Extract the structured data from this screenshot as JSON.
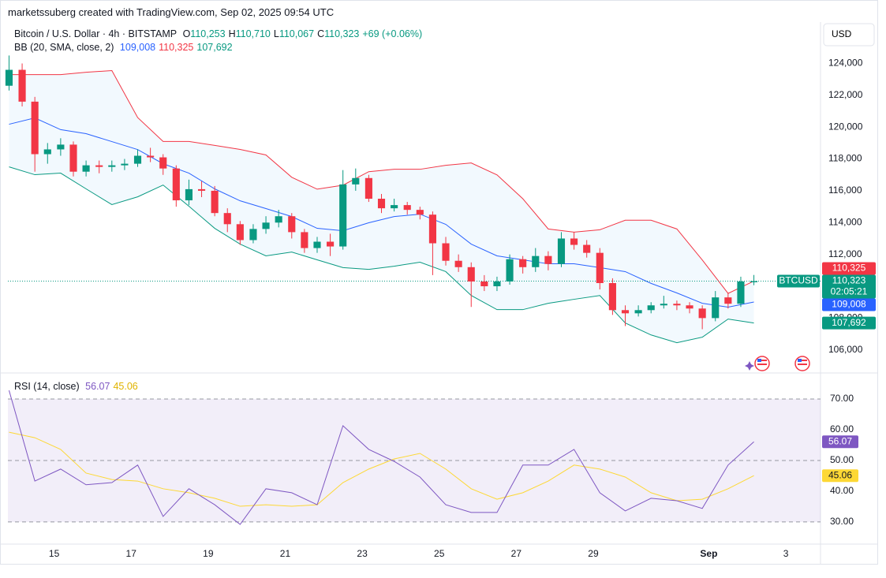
{
  "header": "marketssuberg created with TradingView.com, Sep 02, 2025 09:54 UTC",
  "chart_data": [
    {
      "type": "candlestick",
      "currency": "USD",
      "legend": {
        "symbol": "Bitcoin / U.S. Dollar · 4h · BITSTAMP",
        "fields": [
          {
            "key": "O",
            "value": "110,253"
          },
          {
            "key": "H",
            "value": "110,710"
          },
          {
            "key": "L",
            "value": "110,067"
          },
          {
            "key": "C",
            "value": "110,323"
          }
        ],
        "change": "+69 (+0.06%)"
      },
      "bb_legend": {
        "name": "BB (20, SMA, close, 2)",
        "values": [
          "109,008",
          "110,325",
          "107,692"
        ]
      },
      "up_color": "#089981",
      "down_color": "#f23645",
      "x": [
        13.83,
        14.17,
        14.5,
        14.83,
        15.17,
        15.5,
        15.83,
        16.17,
        16.5,
        16.83,
        17.17,
        17.5,
        17.83,
        18.17,
        18.5,
        18.83,
        19.17,
        19.5,
        19.83,
        20.17,
        20.5,
        20.83,
        21.17,
        21.5,
        21.83,
        22.17,
        22.5,
        22.83,
        23.17,
        23.5,
        23.83,
        24.17,
        24.5,
        24.83,
        25.17,
        25.5,
        25.83,
        26.17,
        26.5,
        26.83,
        27.17,
        27.5,
        27.83,
        28.17,
        28.5,
        28.83,
        29.17,
        29.5,
        29.83,
        30.17,
        30.5,
        30.83,
        31.17,
        31.5,
        31.83,
        32.17,
        32.5,
        32.83,
        33.17
      ],
      "open": [
        122600,
        123600,
        121600,
        118300,
        118600,
        118900,
        117200,
        117600,
        117500,
        117600,
        117700,
        118200,
        118100,
        117400,
        115400,
        116100,
        116000,
        114600,
        113900,
        112900,
        113600,
        114000,
        114400,
        113400,
        112400,
        112800,
        112500,
        116400,
        116800,
        115500,
        114900,
        115100,
        114800,
        114500,
        112700,
        111600,
        111200,
        110300,
        110000,
        110300,
        111700,
        111200,
        111900,
        111400,
        113000,
        112600,
        112100,
        110200,
        108500,
        108300,
        108500,
        108800,
        108900,
        108800,
        108600,
        108000,
        109300,
        108900,
        110253
      ],
      "high": [
        124500,
        124000,
        121900,
        119000,
        119300,
        119100,
        117900,
        117900,
        117900,
        118000,
        118600,
        118700,
        118300,
        117600,
        116700,
        116600,
        116300,
        114900,
        114100,
        113900,
        114400,
        114800,
        114600,
        113600,
        113100,
        113300,
        117300,
        117400,
        117000,
        115800,
        115500,
        115300,
        115000,
        114700,
        113100,
        112000,
        111500,
        110700,
        110600,
        112000,
        111900,
        112400,
        112200,
        113400,
        113400,
        112900,
        112400,
        110500,
        108800,
        108800,
        109000,
        109400,
        109100,
        109000,
        108800,
        109700,
        109600,
        110600,
        110710
      ],
      "low": [
        122300,
        121300,
        117200,
        117700,
        118200,
        116900,
        116900,
        117100,
        117200,
        117300,
        117500,
        117800,
        117000,
        115000,
        115100,
        115600,
        114400,
        113400,
        112600,
        112700,
        113300,
        113700,
        113000,
        112100,
        112100,
        111900,
        112300,
        116000,
        115300,
        114600,
        114700,
        114500,
        114200,
        110700,
        111300,
        110900,
        108700,
        109700,
        109700,
        110100,
        110800,
        110900,
        111000,
        111200,
        112300,
        111800,
        109800,
        108200,
        107500,
        108100,
        108300,
        108600,
        108500,
        108300,
        107300,
        107800,
        108600,
        108700,
        110067
      ],
      "close": [
        123600,
        121600,
        118300,
        118600,
        118900,
        117200,
        117600,
        117500,
        117600,
        117700,
        118200,
        118100,
        117400,
        115400,
        116100,
        116000,
        114600,
        113900,
        112900,
        113600,
        114000,
        114400,
        113400,
        112400,
        112800,
        112500,
        116400,
        116800,
        115500,
        114900,
        115100,
        114800,
        114500,
        112700,
        111600,
        111200,
        110300,
        110000,
        110300,
        111700,
        111200,
        111900,
        111400,
        113000,
        112600,
        112100,
        110200,
        108500,
        108300,
        108500,
        108800,
        108900,
        108800,
        108600,
        108000,
        109300,
        108900,
        110300,
        110323
      ],
      "indicator_x": [
        13.83,
        14.5,
        15.17,
        15.83,
        16.5,
        17.17,
        17.83,
        18.5,
        19.17,
        19.83,
        20.5,
        21.17,
        21.83,
        22.5,
        23.17,
        23.83,
        24.5,
        25.17,
        25.83,
        26.5,
        27.17,
        27.83,
        28.5,
        29.17,
        29.83,
        30.5,
        31.17,
        31.83,
        32.5,
        33.17
      ],
      "bb": [
        {
          "color": "#2962ff",
          "values": [
            120180,
            120580,
            119840,
            119590,
            119090,
            118590,
            117700,
            117110,
            116120,
            115370,
            114880,
            114380,
            113640,
            113490,
            113990,
            114380,
            114530,
            113890,
            112650,
            111910,
            111660,
            111410,
            111410,
            111170,
            110920,
            110180,
            109580,
            108930,
            108690,
            109008
          ]
        },
        {
          "color": "#f23645",
          "values": [
            123300,
            123300,
            123300,
            123450,
            123550,
            120600,
            119100,
            119100,
            118850,
            118600,
            118250,
            116850,
            116100,
            116350,
            117200,
            117350,
            117350,
            117600,
            117750,
            117000,
            115500,
            113600,
            113400,
            113550,
            114150,
            114150,
            113600,
            111650,
            109550,
            110325
          ]
        },
        {
          "color": "#089981",
          "values": [
            117500,
            117010,
            117110,
            116120,
            115130,
            115620,
            116360,
            115030,
            113640,
            112650,
            111910,
            112150,
            111660,
            111170,
            111060,
            111260,
            111510,
            110920,
            109420,
            108530,
            108530,
            108930,
            109180,
            109420,
            107690,
            106940,
            106450,
            106800,
            107940,
            107692
          ]
        }
      ],
      "price_labels": [
        {
          "value": 110325,
          "label": "110,325",
          "color": "#f23645"
        },
        {
          "value": 110323,
          "label": "110,323",
          "color": "#089981",
          "countdown": "02:05:21",
          "symbol": "BTCUSD"
        },
        {
          "value": 109008,
          "label": "109,008",
          "color": "#2962ff"
        },
        {
          "value": 107692,
          "label": "107,692",
          "color": "#089981"
        }
      ],
      "xlim": [
        13.8,
        34.9
      ],
      "xticks": [
        15,
        17,
        19,
        21,
        23,
        25,
        27,
        29,
        {
          "value": 32,
          "label": "Sep"
        },
        {
          "value": 34,
          "label": "3"
        }
      ],
      "ylim": [
        104600,
        126600
      ],
      "yticks": [
        {
          "value": 106000,
          "label": "106,000"
        },
        {
          "value": 108000,
          "label": "108,000"
        },
        {
          "value": 110000,
          "label": "110,000"
        },
        {
          "value": 112000,
          "label": "112,000"
        },
        {
          "value": 114000,
          "label": "114,000"
        },
        {
          "value": 116000,
          "label": "116,000"
        },
        {
          "value": 118000,
          "label": "118,000"
        },
        {
          "value": 120000,
          "label": "120,000"
        },
        {
          "value": 122000,
          "label": "122,000"
        },
        {
          "value": 124000,
          "label": "124,000"
        }
      ],
      "grid": false
    },
    {
      "type": "line",
      "title": "RSI (14, close)",
      "x": [
        13.83,
        14.5,
        15.17,
        15.83,
        16.5,
        17.17,
        17.83,
        18.5,
        19.17,
        19.83,
        20.5,
        21.17,
        21.83,
        22.5,
        23.17,
        23.83,
        24.5,
        25.17,
        25.83,
        26.5,
        27.17,
        27.83,
        28.5,
        29.17,
        29.83,
        30.5,
        31.17,
        31.83,
        32.5,
        33.17
      ],
      "series": [
        {
          "color": "#7e57c2",
          "values": [
            72.8,
            43.3,
            47.2,
            42.1,
            42.8,
            48.5,
            31.8,
            40.8,
            35.6,
            29.2,
            40.8,
            39.5,
            35.6,
            61.3,
            53.6,
            49.7,
            44.6,
            35.6,
            33.1,
            33.1,
            48.5,
            48.5,
            53.6,
            39.5,
            33.6,
            37.7,
            36.9,
            34.4,
            48.5,
            56.07
          ]
        },
        {
          "color": "#fdd835",
          "values": [
            59.2,
            57.4,
            53.6,
            45.9,
            43.8,
            43.3,
            40.8,
            39.5,
            37.7,
            35.1,
            35.6,
            35.1,
            35.6,
            42.8,
            47.2,
            50.5,
            52.3,
            47.2,
            40.8,
            37.4,
            39.5,
            43.3,
            48.5,
            47.2,
            44.6,
            39.5,
            36.9,
            37.4,
            40.8,
            45.06
          ]
        }
      ],
      "levels": [
        70,
        50,
        30
      ],
      "ylim": [
        22.8,
        78.2
      ],
      "yticks": [
        {
          "value": 70,
          "label": "70.00"
        },
        {
          "value": 60,
          "label": "60.00"
        },
        {
          "value": 50,
          "label": "50.00"
        },
        {
          "value": 40,
          "label": "40.00"
        },
        {
          "value": 30,
          "label": "30.00"
        }
      ]
    }
  ]
}
